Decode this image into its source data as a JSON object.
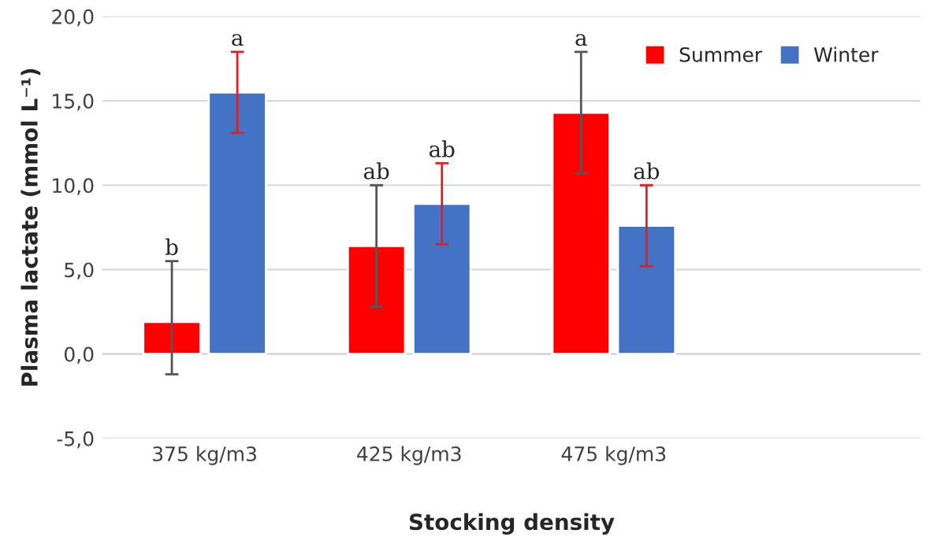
{
  "chart_data": {
    "type": "bar",
    "xlabel": "Stocking density",
    "ylabel": "Plasma lactate (mmol L⁻¹)",
    "categories": [
      "375 kg/m3",
      "425 kg/m3",
      "475 kg/m3",
      null
    ],
    "series": [
      {
        "name": "Summer",
        "color": "#ff0000",
        "values": [
          1.9,
          6.4,
          14.3,
          null
        ],
        "errors": [
          [
            -1.2,
            5.5
          ],
          3.6,
          3.6,
          null
        ],
        "value_labels": [
          "b",
          "ab",
          "a",
          null
        ]
      },
      {
        "name": "Winter",
        "color": "#4472c4",
        "values": [
          15.5,
          8.9,
          7.6,
          null
        ],
        "errors": [
          2.4,
          2.4,
          2.4,
          null
        ],
        "value_labels": [
          "a",
          "ab",
          "ab",
          null
        ]
      }
    ],
    "ylim": [
      -5,
      20
    ],
    "yticks": [
      {
        "value": -5,
        "label": "-5,0"
      },
      {
        "value": 0,
        "label": "0,0"
      },
      {
        "value": 5,
        "label": "5,0"
      },
      {
        "value": 10,
        "label": "10,0"
      },
      {
        "value": 15,
        "label": "15,0"
      },
      {
        "value": 20,
        "label": "20,0"
      }
    ],
    "grid": "y",
    "legend": "top right"
  }
}
